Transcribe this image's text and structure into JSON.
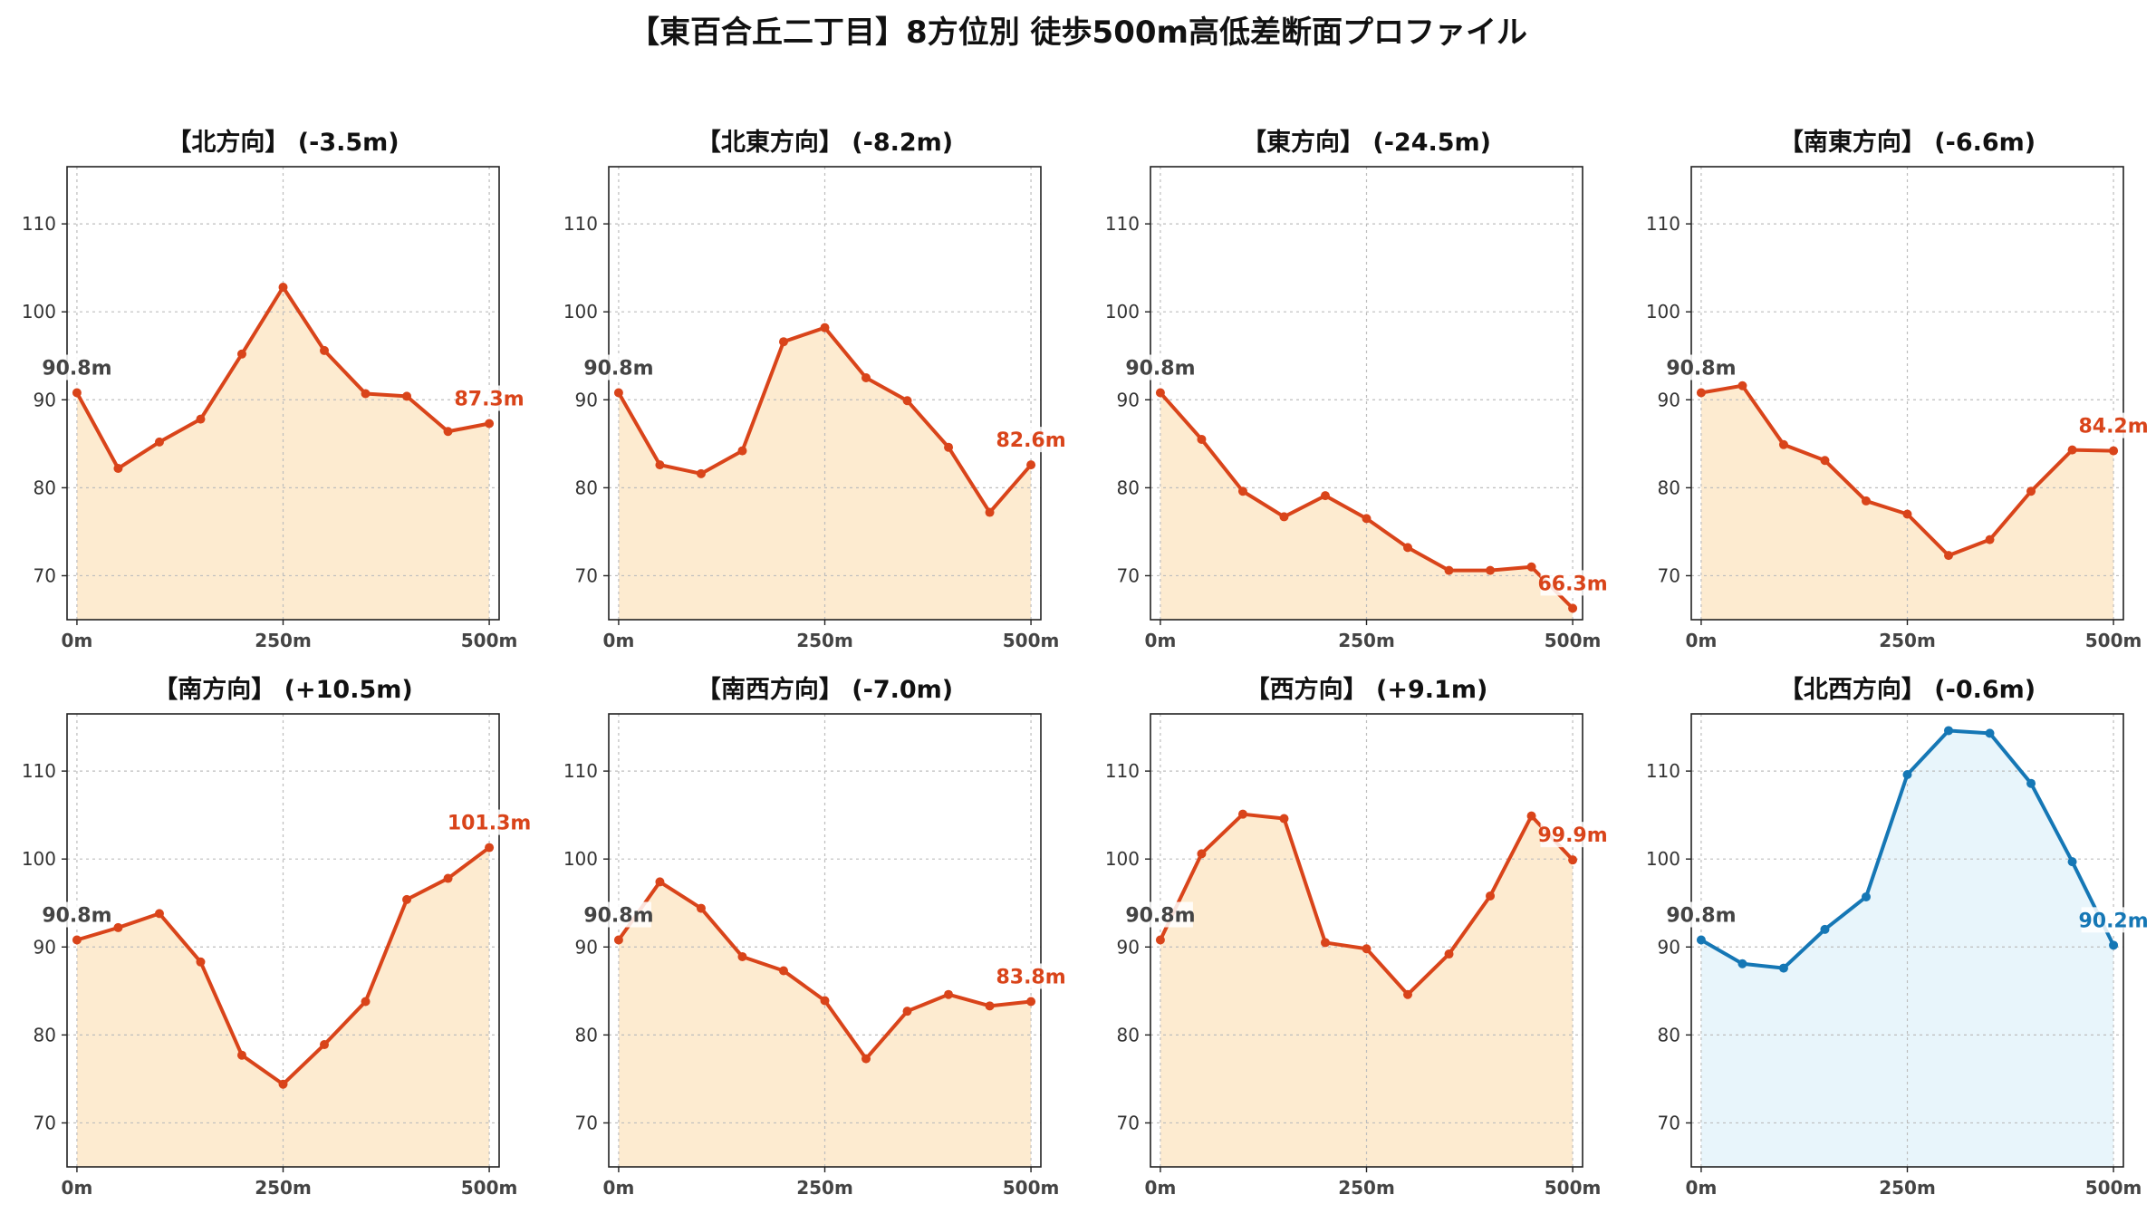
{
  "title": "【東百合丘二丁目】8方位別 徒歩500m高低差断面プロファイル",
  "colors": {
    "loss_line": "#d9441a",
    "loss_fill": "#fdebd0",
    "gain_line": "#1577b5",
    "gain_fill": "#e8f5fb",
    "label_gray": "#444444"
  },
  "chart_data": [
    {
      "type": "area",
      "title": "【北方向】 (-3.5m)",
      "x": [
        0,
        50,
        100,
        150,
        200,
        250,
        300,
        350,
        400,
        450,
        500
      ],
      "values": [
        90.8,
        82.2,
        85.2,
        87.8,
        95.2,
        102.8,
        95.6,
        90.7,
        90.4,
        86.4,
        87.3
      ],
      "start_label": "90.8m",
      "end_label": "87.3m",
      "color": "loss",
      "xticks": [
        "0m",
        "250m",
        "500m"
      ],
      "yticks": [
        "70",
        "80",
        "90",
        "100",
        "110"
      ],
      "xlim": [
        -12,
        512
      ],
      "ylim": [
        65,
        116.5
      ],
      "grid": true
    },
    {
      "type": "area",
      "title": "【北東方向】 (-8.2m)",
      "x": [
        0,
        50,
        100,
        150,
        200,
        250,
        300,
        350,
        400,
        450,
        500
      ],
      "values": [
        90.8,
        82.6,
        81.6,
        84.2,
        96.6,
        98.2,
        92.5,
        89.9,
        84.6,
        77.2,
        82.6
      ],
      "start_label": "90.8m",
      "end_label": "82.6m",
      "color": "loss",
      "xticks": [
        "0m",
        "250m",
        "500m"
      ],
      "yticks": [
        "70",
        "80",
        "90",
        "100",
        "110"
      ],
      "xlim": [
        -12,
        512
      ],
      "ylim": [
        65,
        116.5
      ],
      "grid": true
    },
    {
      "type": "area",
      "title": "【東方向】 (-24.5m)",
      "x": [
        0,
        50,
        100,
        150,
        200,
        250,
        300,
        350,
        400,
        450,
        500
      ],
      "values": [
        90.8,
        85.5,
        79.6,
        76.7,
        79.1,
        76.5,
        73.2,
        70.6,
        70.6,
        71.0,
        66.3
      ],
      "start_label": "90.8m",
      "end_label": "66.3m",
      "color": "loss",
      "xticks": [
        "0m",
        "250m",
        "500m"
      ],
      "yticks": [
        "70",
        "80",
        "90",
        "100",
        "110"
      ],
      "xlim": [
        -12,
        512
      ],
      "ylim": [
        65,
        116.5
      ],
      "grid": true
    },
    {
      "type": "area",
      "title": "【南東方向】 (-6.6m)",
      "x": [
        0,
        50,
        100,
        150,
        200,
        250,
        300,
        350,
        400,
        450,
        500
      ],
      "values": [
        90.8,
        91.6,
        84.9,
        83.1,
        78.5,
        77.0,
        72.3,
        74.1,
        79.6,
        84.3,
        84.2
      ],
      "start_label": "90.8m",
      "end_label": "84.2m",
      "color": "loss",
      "xticks": [
        "0m",
        "250m",
        "500m"
      ],
      "yticks": [
        "70",
        "80",
        "90",
        "100",
        "110"
      ],
      "xlim": [
        -12,
        512
      ],
      "ylim": [
        65,
        116.5
      ],
      "grid": true
    },
    {
      "type": "area",
      "title": "【南方向】 (+10.5m)",
      "x": [
        0,
        50,
        100,
        150,
        200,
        250,
        300,
        350,
        400,
        450,
        500
      ],
      "values": [
        90.8,
        92.2,
        93.8,
        88.3,
        77.7,
        74.4,
        78.9,
        83.8,
        95.4,
        97.8,
        101.3
      ],
      "start_label": "90.8m",
      "end_label": "101.3m",
      "color": "loss",
      "xticks": [
        "0m",
        "250m",
        "500m"
      ],
      "yticks": [
        "70",
        "80",
        "90",
        "100",
        "110"
      ],
      "xlim": [
        -12,
        512
      ],
      "ylim": [
        65,
        116.5
      ],
      "grid": true
    },
    {
      "type": "area",
      "title": "【南西方向】 (-7.0m)",
      "x": [
        0,
        50,
        100,
        150,
        200,
        250,
        300,
        350,
        400,
        450,
        500
      ],
      "values": [
        90.8,
        97.4,
        94.4,
        88.9,
        87.3,
        83.9,
        77.3,
        82.7,
        84.6,
        83.3,
        83.8
      ],
      "start_label": "90.8m",
      "end_label": "83.8m",
      "color": "loss",
      "xticks": [
        "0m",
        "250m",
        "500m"
      ],
      "yticks": [
        "70",
        "80",
        "90",
        "100",
        "110"
      ],
      "xlim": [
        -12,
        512
      ],
      "ylim": [
        65,
        116.5
      ],
      "grid": true
    },
    {
      "type": "area",
      "title": "【西方向】 (+9.1m)",
      "x": [
        0,
        50,
        100,
        150,
        200,
        250,
        300,
        350,
        400,
        450,
        500
      ],
      "values": [
        90.8,
        100.6,
        105.1,
        104.6,
        90.5,
        89.8,
        84.6,
        89.2,
        95.8,
        104.9,
        99.9
      ],
      "start_label": "90.8m",
      "end_label": "99.9m",
      "color": "loss",
      "xticks": [
        "0m",
        "250m",
        "500m"
      ],
      "yticks": [
        "70",
        "80",
        "90",
        "100",
        "110"
      ],
      "xlim": [
        -12,
        512
      ],
      "ylim": [
        65,
        116.5
      ],
      "grid": true
    },
    {
      "type": "area",
      "title": "【北西方向】 (-0.6m)",
      "x": [
        0,
        50,
        100,
        150,
        200,
        250,
        300,
        350,
        400,
        450,
        500
      ],
      "values": [
        90.8,
        88.1,
        87.6,
        92.0,
        95.7,
        109.6,
        114.6,
        114.3,
        108.6,
        99.7,
        90.2
      ],
      "start_label": "90.8m",
      "end_label": "90.2m",
      "color": "gain",
      "xticks": [
        "0m",
        "250m",
        "500m"
      ],
      "yticks": [
        "70",
        "80",
        "90",
        "100",
        "110"
      ],
      "xlim": [
        -12,
        512
      ],
      "ylim": [
        65,
        116.5
      ],
      "grid": true
    }
  ]
}
